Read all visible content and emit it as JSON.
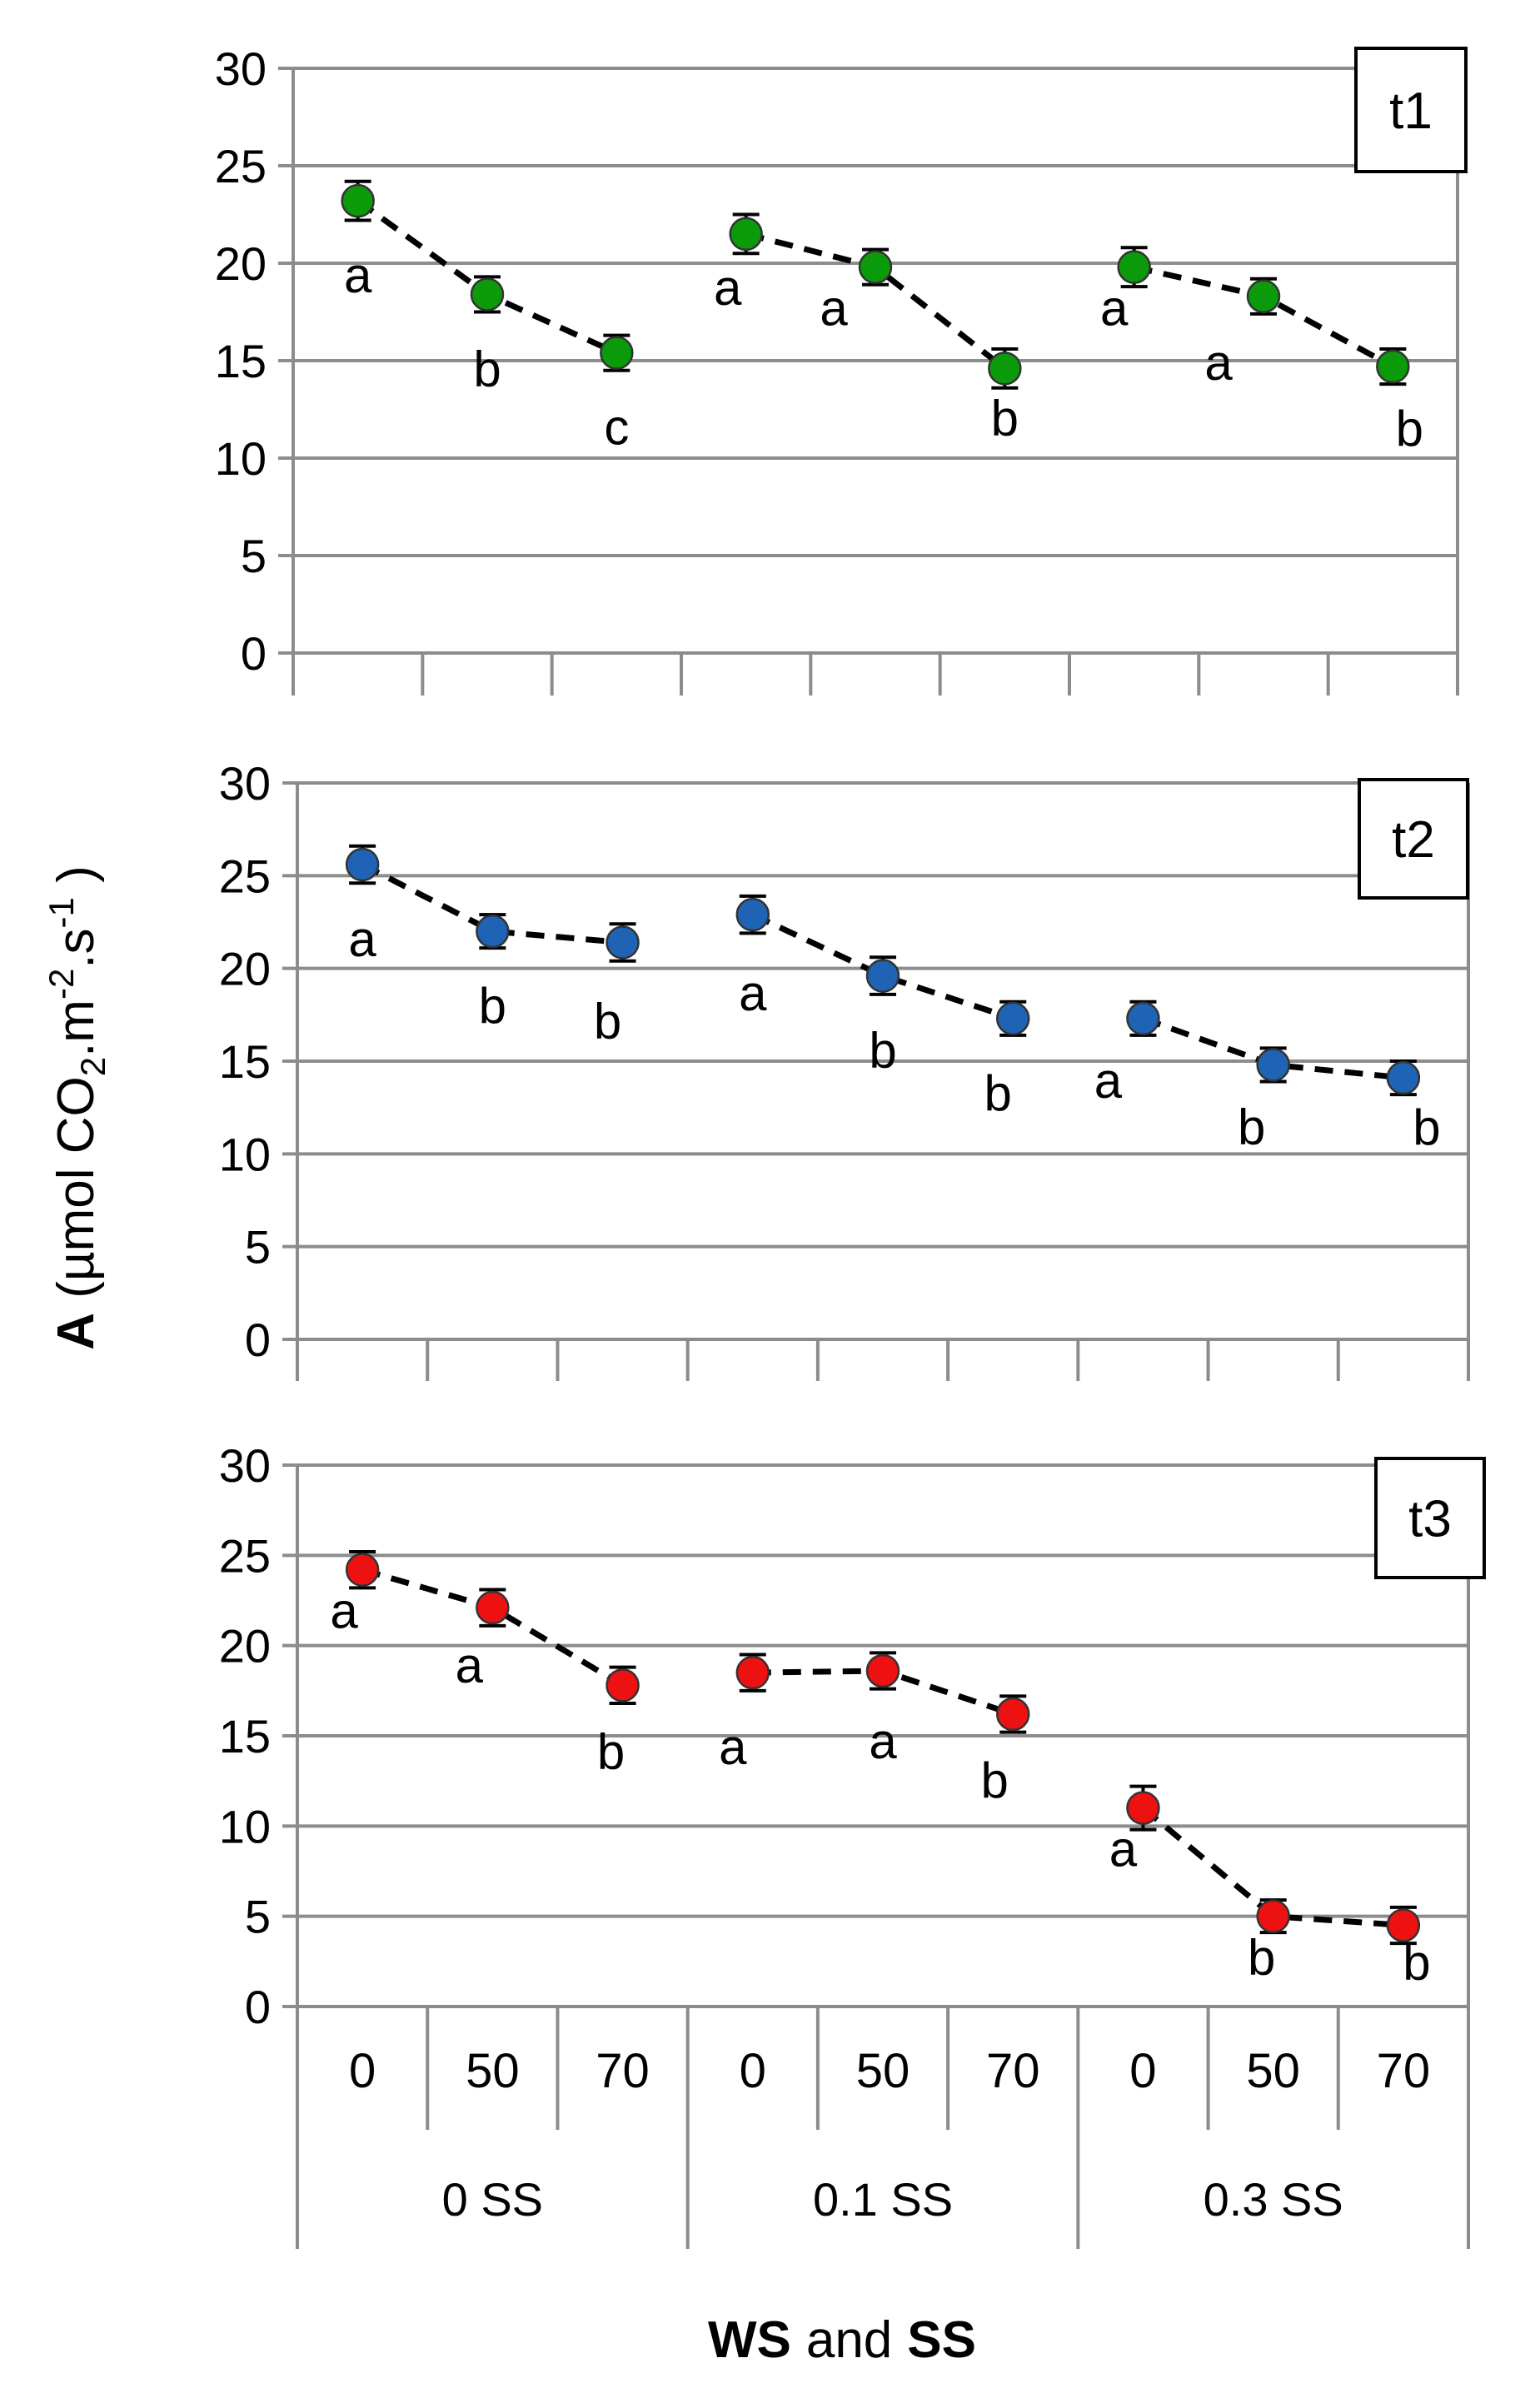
{
  "figure": {
    "ylabel_bold": "A",
    "ylabel_rest": " (µmol CO",
    "ylabel_sub1": "2",
    "ylabel_mid": ".m",
    "ylabel_sup1": "-2",
    "ylabel_mid2": ".s",
    "ylabel_sup2": "-1",
    "ylabel_end": " )",
    "xlabel_ws": "WS",
    "xlabel_and": "and",
    "xlabel_ss": "SS"
  },
  "chart_data": [
    {
      "type": "line",
      "panel": "t1",
      "color": "#0a9a0a",
      "ylim": [
        0,
        30
      ],
      "yticks": [
        0,
        5,
        10,
        15,
        20,
        25,
        30
      ],
      "grid": true,
      "categories": [
        "0",
        "50",
        "70",
        "0",
        "50",
        "70",
        "0",
        "50",
        "70"
      ],
      "groups": [
        "0 SS",
        "0.1 SS",
        "0.3 SS"
      ],
      "values": [
        23.2,
        18.4,
        15.4,
        21.5,
        19.8,
        14.6,
        19.8,
        18.3,
        14.7
      ],
      "errors": [
        1.0,
        0.9,
        0.9,
        1.0,
        0.9,
        1.0,
        1.0,
        0.9,
        0.9
      ],
      "letters": [
        "a",
        "b",
        "c",
        "a",
        "a",
        "b",
        "a",
        "a",
        "b"
      ]
    },
    {
      "type": "line",
      "panel": "t2",
      "color": "#1f63b4",
      "ylim": [
        0,
        30
      ],
      "yticks": [
        0,
        5,
        10,
        15,
        20,
        25,
        30
      ],
      "grid": true,
      "categories": [
        "0",
        "50",
        "70",
        "0",
        "50",
        "70",
        "0",
        "50",
        "70"
      ],
      "groups": [
        "0 SS",
        "0.1 SS",
        "0.3 SS"
      ],
      "values": [
        25.6,
        22.0,
        21.4,
        22.9,
        19.6,
        17.3,
        17.3,
        14.8,
        14.1
      ],
      "errors": [
        1.0,
        0.9,
        1.0,
        1.0,
        1.0,
        0.9,
        0.9,
        0.9,
        0.9
      ],
      "letters": [
        "a",
        "b",
        "b",
        "a",
        "b",
        "b",
        "a",
        "b",
        "b"
      ]
    },
    {
      "type": "line",
      "panel": "t3",
      "color": "#ee1111",
      "ylim": [
        0,
        30
      ],
      "yticks": [
        0,
        5,
        10,
        15,
        20,
        25,
        30
      ],
      "grid": true,
      "categories": [
        "0",
        "50",
        "70",
        "0",
        "50",
        "70",
        "0",
        "50",
        "70"
      ],
      "groups": [
        "0 SS",
        "0.1 SS",
        "0.3 SS"
      ],
      "values": [
        24.2,
        22.1,
        17.8,
        18.5,
        18.6,
        16.2,
        11.0,
        5.0,
        4.5
      ],
      "errors": [
        1.0,
        1.0,
        1.0,
        1.0,
        1.0,
        1.0,
        1.2,
        0.9,
        1.0
      ],
      "letters": [
        "a",
        "a",
        "b",
        "a",
        "a",
        "b",
        "a",
        "b",
        "b"
      ]
    }
  ]
}
